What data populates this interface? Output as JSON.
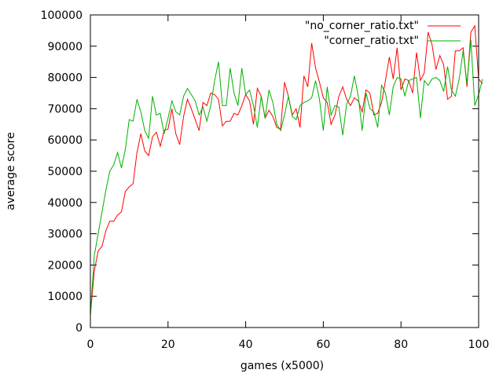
{
  "chart_data": {
    "type": "line",
    "xlabel": "games (x5000)",
    "ylabel": "average score",
    "xlim": [
      0,
      100
    ],
    "ylim": [
      0,
      100000
    ],
    "x_ticks": [
      0,
      20,
      40,
      60,
      80,
      100
    ],
    "y_ticks": [
      0,
      10000,
      20000,
      30000,
      40000,
      50000,
      60000,
      70000,
      80000,
      90000,
      100000
    ],
    "legend_position": "top-right",
    "grid": false,
    "series": [
      {
        "name": "\"no_corner_ratio.txt\"",
        "color": "#ff0000",
        "values": [
          4000,
          18000,
          24500,
          26000,
          31000,
          34000,
          34000,
          36000,
          37000,
          43500,
          45000,
          46000,
          56000,
          62000,
          56500,
          55000,
          61000,
          62500,
          58000,
          63000,
          63500,
          70000,
          62000,
          58500,
          67500,
          73000,
          70000,
          66500,
          63000,
          72000,
          71000,
          75000,
          74500,
          73000,
          64500,
          66000,
          66000,
          68500,
          68000,
          71000,
          74500,
          72500,
          65000,
          76500,
          74000,
          67000,
          69500,
          67500,
          64000,
          63500,
          78500,
          74000,
          68000,
          70000,
          64000,
          80500,
          77000,
          91000,
          83000,
          78500,
          73500,
          72000,
          65000,
          68000,
          74000,
          77000,
          73000,
          71000,
          73500,
          72500,
          69000,
          76000,
          75000,
          68000,
          68500,
          72000,
          79000,
          86500,
          79500,
          89500,
          76000,
          79500,
          79000,
          75000,
          88000,
          79000,
          81500,
          94500,
          90500,
          82500,
          87000,
          84000,
          73000,
          74000,
          88500,
          88500,
          89500,
          77000,
          94500,
          96500,
          79500,
          78000
        ]
      },
      {
        "name": "\"corner_ratio.txt\"",
        "color": "#00b000",
        "values": [
          4000,
          23000,
          30000,
          37000,
          44000,
          50000,
          52000,
          56000,
          51000,
          57000,
          66500,
          66000,
          73000,
          69000,
          63000,
          60500,
          74000,
          68000,
          68500,
          62000,
          67000,
          72500,
          69000,
          68000,
          74000,
          76500,
          74500,
          72500,
          68000,
          70500,
          66000,
          71000,
          79000,
          85000,
          71000,
          71000,
          83000,
          75000,
          71000,
          83000,
          74500,
          76000,
          71000,
          64000,
          74000,
          67000,
          76000,
          72000,
          65000,
          63000,
          68000,
          74000,
          67500,
          66500,
          71000,
          72000,
          72500,
          73500,
          79000,
          73000,
          63000,
          77000,
          68000,
          71000,
          70500,
          61500,
          71500,
          74000,
          80500,
          74000,
          63000,
          75000,
          70000,
          69000,
          64000,
          77500,
          75000,
          68000,
          77000,
          80000,
          79500,
          74000,
          79000,
          79500,
          80000,
          67000,
          79000,
          77500,
          79500,
          80000,
          79000,
          75500,
          83500,
          76000,
          74000,
          79500,
          88500,
          78000,
          92000,
          71000,
          74500,
          79500
        ]
      }
    ]
  }
}
